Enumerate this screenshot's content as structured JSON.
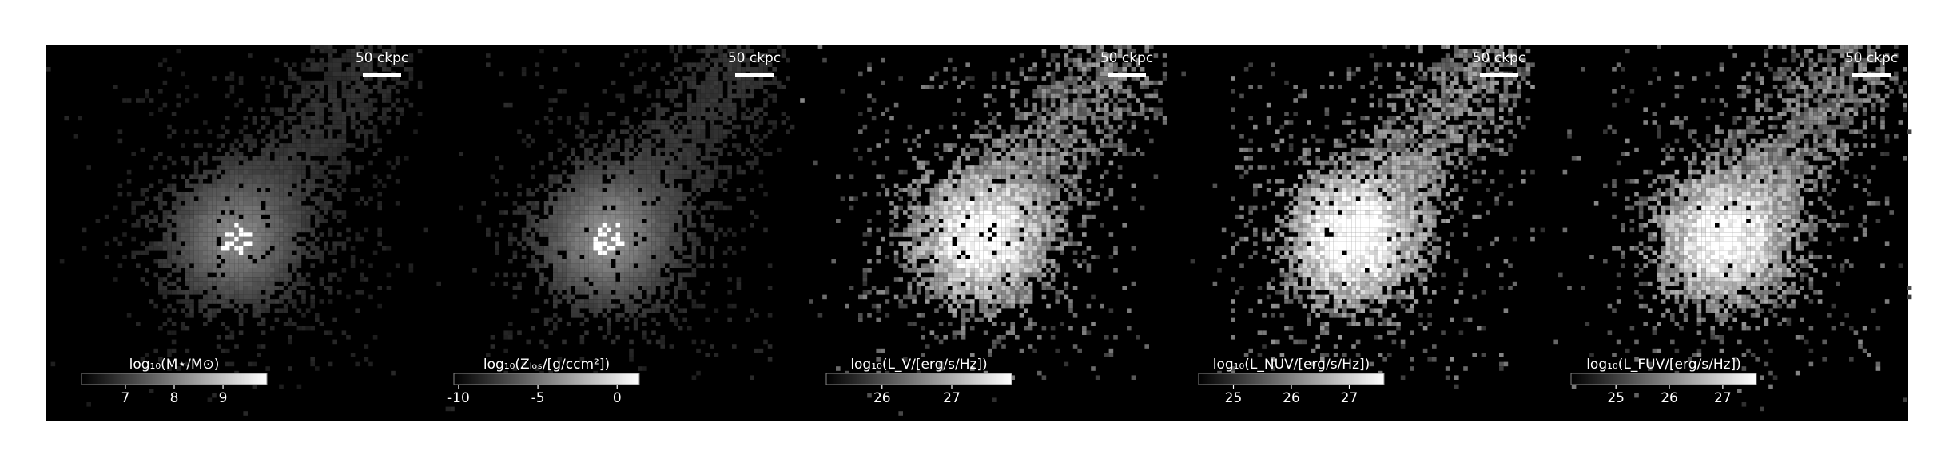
{
  "panels": [
    {
      "scale_bar": "50 ckpc",
      "colorbar": {
        "label": "log₁₀(M⋆/M⊙)",
        "lim": [
          6.1,
          9.9
        ],
        "ticks": [
          7,
          8,
          9
        ]
      }
    },
    {
      "scale_bar": "50 ckpc",
      "colorbar": {
        "label": "log₁₀(Zₗₒₛ/[g/ccm²])",
        "lim": [
          -10.3,
          1.4
        ],
        "ticks": [
          -10,
          -5,
          0
        ]
      }
    },
    {
      "scale_bar": "50 ckpc",
      "colorbar": {
        "label": "log₁₀(L_V/[erg/s/Hz])",
        "lim": [
          25.2,
          27.86
        ],
        "ticks": [
          26,
          27
        ]
      }
    },
    {
      "scale_bar": "50 ckpc",
      "colorbar": {
        "label": "log₁₀(L_NUV/[erg/s/Hz])",
        "lim": [
          24.4,
          27.6
        ],
        "ticks": [
          25,
          26,
          27
        ]
      }
    },
    {
      "scale_bar": "50 ckpc",
      "colorbar": {
        "label": "log₁₀(L_FUV/[erg/s/Hz])",
        "lim": [
          24.16,
          27.63
        ],
        "ticks": [
          25,
          26,
          27
        ]
      }
    }
  ]
}
